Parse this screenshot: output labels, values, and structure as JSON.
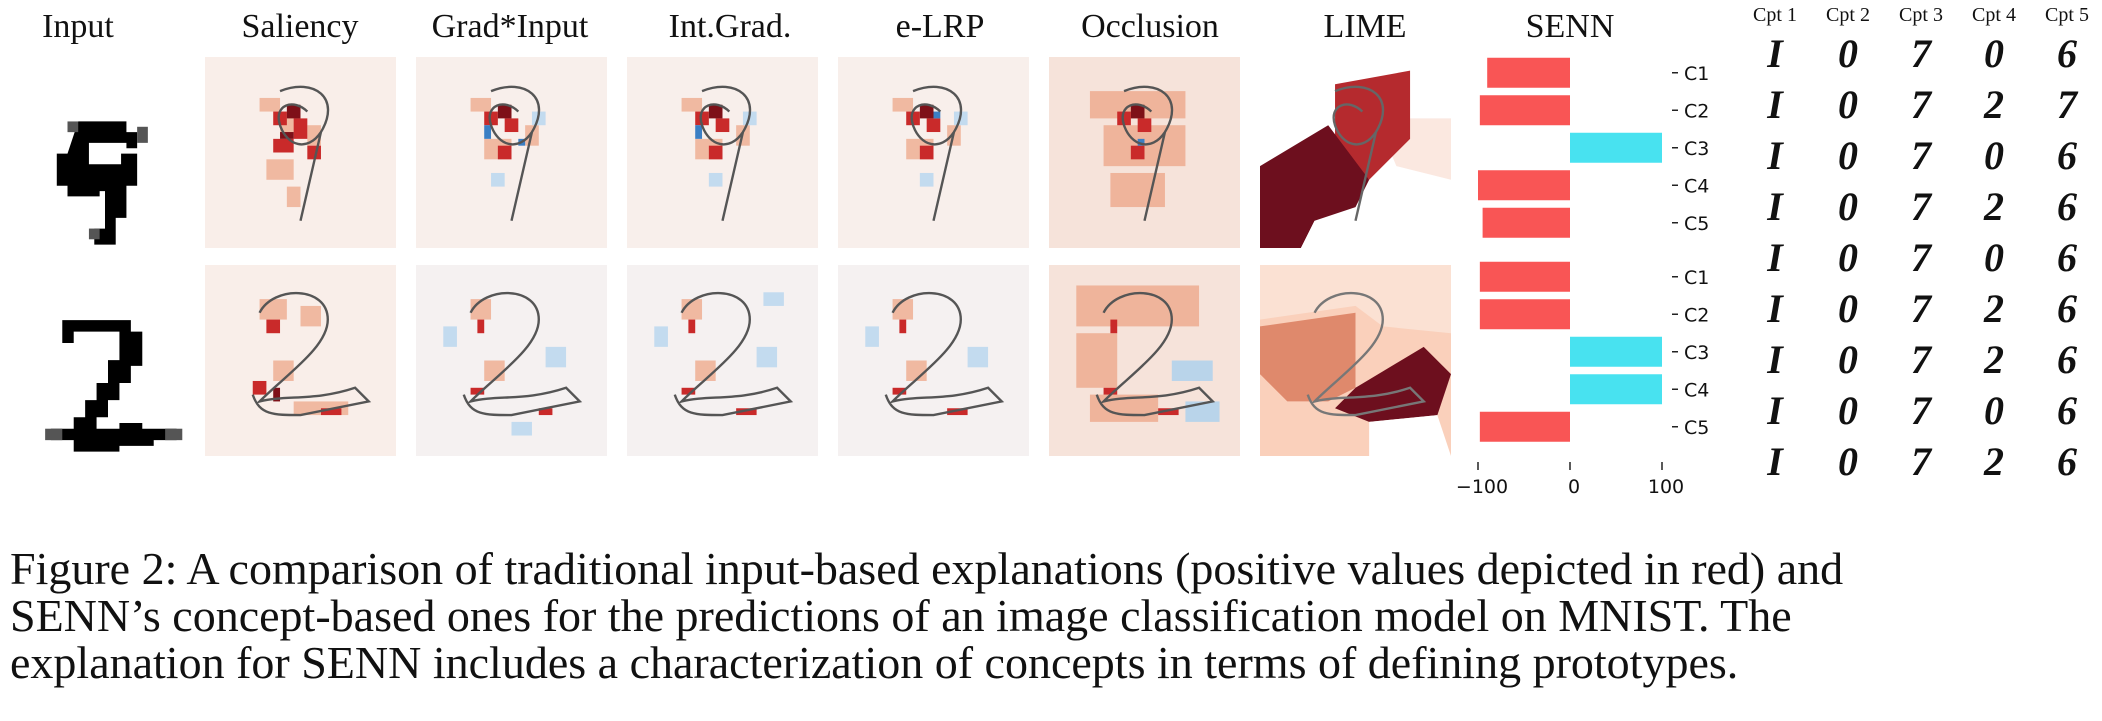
{
  "columns": [
    "Input",
    "Saliency",
    "Grad*Input",
    "Int.Grad.",
    "e-LRP",
    "Occlusion",
    "LIME",
    "SENN"
  ],
  "prototype_headers": [
    "Cpt 1",
    "Cpt 2",
    "Cpt 3",
    "Cpt 4",
    "Cpt 5"
  ],
  "prototype_rows": [
    [
      "I",
      "0",
      "7",
      "0",
      "6"
    ],
    [
      "I",
      "0",
      "7",
      "2",
      "7"
    ],
    [
      "I",
      "0",
      "7",
      "0",
      "6"
    ],
    [
      "I",
      "0",
      "7",
      "2",
      "6"
    ],
    [
      "I",
      "0",
      "7",
      "0",
      "6"
    ],
    [
      "I",
      "0",
      "7",
      "2",
      "6"
    ],
    [
      "I",
      "0",
      "7",
      "2",
      "6"
    ],
    [
      "I",
      "0",
      "7",
      "0",
      "6"
    ],
    [
      "I",
      "0",
      "7",
      "2",
      "6"
    ]
  ],
  "input_digits": [
    "9",
    "2"
  ],
  "chart_data": [
    {
      "type": "bar",
      "orientation": "horizontal",
      "title": "SENN",
      "categories": [
        "C1",
        "C2",
        "C3",
        "C4",
        "C5"
      ],
      "values": [
        -90,
        -98,
        100,
        -100,
        -95
      ],
      "xlim": [
        -100,
        100
      ],
      "xticks": [
        "−100",
        "0",
        "100"
      ],
      "colors": {
        "negative": "#f95555",
        "positive": "#48e2f0"
      }
    },
    {
      "type": "bar",
      "orientation": "horizontal",
      "categories": [
        "C1",
        "C2",
        "C3",
        "C4",
        "C5"
      ],
      "values": [
        -98,
        -98,
        100,
        100,
        -98
      ],
      "xlim": [
        -100,
        100
      ],
      "xticks": [
        "−100",
        "0",
        "100"
      ],
      "colors": {
        "negative": "#f95555",
        "positive": "#48e2f0"
      }
    }
  ],
  "caption": {
    "line1": "Figure 2: A comparison of traditional input-based explanations (positive values depicted in red) and",
    "line2": "SENN’s concept-based ones for the predictions of an image classification model on MNIST. The",
    "line3": "explanation for SENN includes a characterization of concepts in terms of defining prototypes."
  }
}
